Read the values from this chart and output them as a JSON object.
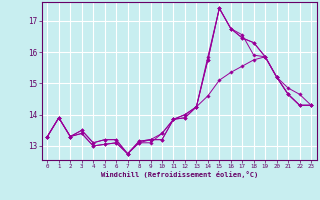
{
  "xlabel": "Windchill (Refroidissement éolien,°C)",
  "background_color": "#c8eef0",
  "line_color": "#990099",
  "grid_color": "#ffffff",
  "xlim": [
    -0.5,
    23.5
  ],
  "ylim": [
    12.55,
    17.6
  ],
  "yticks": [
    13,
    14,
    15,
    16,
    17
  ],
  "xticks": [
    0,
    1,
    2,
    3,
    4,
    5,
    6,
    7,
    8,
    9,
    10,
    11,
    12,
    13,
    14,
    15,
    16,
    17,
    18,
    19,
    20,
    21,
    22,
    23
  ],
  "series": [
    [
      13.3,
      13.9,
      13.3,
      13.4,
      13.0,
      13.05,
      13.1,
      12.75,
      13.15,
      13.2,
      13.2,
      13.85,
      13.9,
      14.25,
      15.75,
      17.4,
      16.75,
      16.45,
      16.3,
      15.85,
      15.2,
      14.65,
      14.3,
      14.3
    ],
    [
      13.3,
      13.9,
      13.3,
      13.4,
      13.0,
      13.05,
      13.1,
      12.75,
      13.15,
      13.2,
      13.4,
      13.85,
      14.0,
      14.25,
      14.6,
      15.1,
      15.35,
      15.55,
      15.75,
      15.85,
      15.2,
      14.85,
      14.65,
      14.3
    ],
    [
      13.3,
      13.9,
      13.3,
      13.5,
      13.1,
      13.2,
      13.2,
      12.75,
      13.1,
      13.2,
      13.2,
      13.85,
      13.9,
      14.25,
      15.75,
      17.4,
      16.75,
      16.45,
      16.3,
      15.85,
      15.2,
      14.65,
      14.3,
      14.3
    ],
    [
      13.3,
      13.9,
      13.3,
      13.5,
      13.1,
      13.2,
      13.2,
      12.75,
      13.1,
      13.1,
      13.4,
      13.85,
      14.0,
      14.25,
      15.85,
      17.4,
      16.75,
      16.55,
      15.9,
      15.85,
      15.2,
      14.65,
      14.3,
      14.3
    ]
  ]
}
